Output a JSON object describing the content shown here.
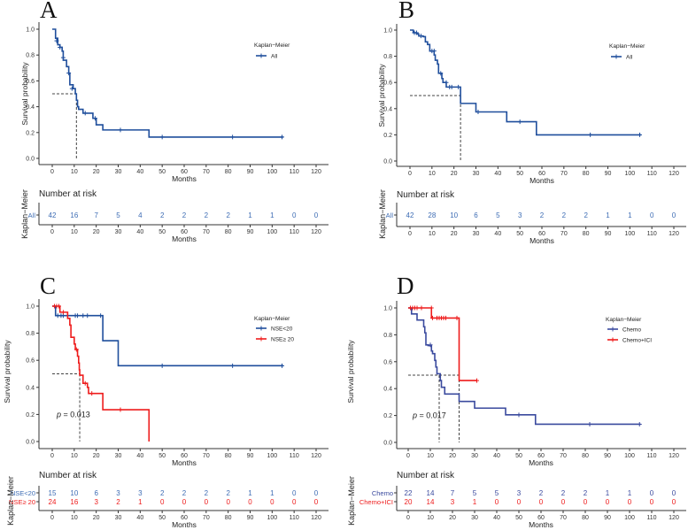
{
  "chart_data": [
    {
      "type": "line",
      "subtype": "kaplan-meier",
      "panel_label": "A",
      "xlabel": "Months",
      "ylabel": "Survival probability",
      "xlim": [
        0,
        120
      ],
      "ylim": [
        0,
        1
      ],
      "xticks": [
        "0",
        "10",
        "20",
        "30",
        "40",
        "50",
        "60",
        "70",
        "80",
        "90",
        "100",
        "110",
        "120"
      ],
      "yticks": [
        "0.0",
        "0.2",
        "0.4",
        "0.6",
        "0.8",
        "1.0"
      ],
      "legend_title": "Kaplan−Meier",
      "legend_position": "top-right",
      "medians": [
        11
      ],
      "p_value": null,
      "series": [
        {
          "name": "All",
          "color": "#1f4e9c",
          "times": [
            0,
            1.5,
            2.5,
            3.5,
            4.5,
            5,
            6.5,
            7.5,
            8,
            9.5,
            10.5,
            11,
            11.5,
            12,
            14,
            18.5,
            20,
            23,
            44,
            105
          ],
          "surv": [
            1,
            0.93,
            0.88,
            0.86,
            0.83,
            0.76,
            0.71,
            0.66,
            0.57,
            0.54,
            0.5,
            0.45,
            0.4,
            0.38,
            0.35,
            0.31,
            0.26,
            0.22,
            0.165,
            0.165
          ],
          "censored": [
            [
              2,
              0.91
            ],
            [
              3.5,
              0.86
            ],
            [
              5,
              0.78
            ],
            [
              7.5,
              0.66
            ],
            [
              9,
              0.54
            ],
            [
              15,
              0.35
            ],
            [
              19.5,
              0.31
            ],
            [
              31,
              0.22
            ],
            [
              50,
              0.165
            ],
            [
              82,
              0.165
            ],
            [
              104.5,
              0.165
            ]
          ]
        }
      ],
      "risk_table": {
        "title": "Number at risk",
        "side_label": "Kaplan−Meier",
        "times": [
          0,
          10,
          20,
          30,
          40,
          50,
          60,
          70,
          80,
          90,
          100,
          110,
          120
        ],
        "rows": [
          {
            "label": "All",
            "color": "#3d6cb4",
            "values": [
              "42",
              "16",
              "7",
              "5",
              "4",
              "2",
              "2",
              "2",
              "2",
              "1",
              "1",
              "0",
              "0"
            ]
          }
        ]
      }
    },
    {
      "type": "line",
      "subtype": "kaplan-meier",
      "panel_label": "B",
      "xlabel": "Months",
      "ylabel": "Survival probability",
      "xlim": [
        0,
        120
      ],
      "ylim": [
        0,
        1
      ],
      "xticks": [
        "0",
        "10",
        "20",
        "30",
        "40",
        "50",
        "60",
        "70",
        "80",
        "90",
        "100",
        "110",
        "120"
      ],
      "yticks": [
        "0.0",
        "0.2",
        "0.4",
        "0.6",
        "0.8",
        "1.0"
      ],
      "legend_title": "Kaplan−Meier",
      "legend_position": "top-right",
      "medians": [
        23
      ],
      "p_value": null,
      "series": [
        {
          "name": "All",
          "color": "#1f4e9c",
          "times": [
            0,
            1.5,
            3,
            4,
            6,
            7,
            8,
            9,
            11,
            11.5,
            12.5,
            13,
            14.5,
            15,
            16.5,
            23,
            30,
            44,
            57.5,
            105
          ],
          "surv": [
            1,
            0.98,
            0.97,
            0.955,
            0.95,
            0.91,
            0.89,
            0.84,
            0.81,
            0.77,
            0.74,
            0.67,
            0.63,
            0.6,
            0.565,
            0.44,
            0.375,
            0.3,
            0.2,
            0.2
          ],
          "censored": [
            [
              2,
              0.98
            ],
            [
              3,
              0.98
            ],
            [
              5,
              0.955
            ],
            [
              10,
              0.84
            ],
            [
              11,
              0.84
            ],
            [
              14,
              0.67
            ],
            [
              16.5,
              0.6
            ],
            [
              18,
              0.565
            ],
            [
              19,
              0.565
            ],
            [
              22,
              0.565
            ],
            [
              31,
              0.375
            ],
            [
              50,
              0.3
            ],
            [
              82,
              0.2
            ],
            [
              104.5,
              0.2
            ]
          ]
        }
      ],
      "risk_table": {
        "title": "Number at risk",
        "side_label": "Kaplan−Meier",
        "times": [
          0,
          10,
          20,
          30,
          40,
          50,
          60,
          70,
          80,
          90,
          100,
          110,
          120
        ],
        "rows": [
          {
            "label": "All",
            "color": "#3d6cb4",
            "values": [
              "42",
              "28",
              "10",
              "6",
              "5",
              "3",
              "2",
              "2",
              "2",
              "1",
              "1",
              "0",
              "0"
            ]
          }
        ]
      }
    },
    {
      "type": "line",
      "subtype": "kaplan-meier",
      "panel_label": "C",
      "xlabel": "Months",
      "ylabel": "Survival probability",
      "xlim": [
        0,
        120
      ],
      "ylim": [
        0,
        1
      ],
      "xticks": [
        "0",
        "10",
        "20",
        "30",
        "40",
        "50",
        "60",
        "70",
        "80",
        "90",
        "100",
        "110",
        "120"
      ],
      "yticks": [
        "0.0",
        "0.2",
        "0.4",
        "0.6",
        "0.8",
        "1.0"
      ],
      "legend_title": "Kaplan−Meier",
      "legend_position": "top-right",
      "medians": [
        12.5
      ],
      "p_value": {
        "label": "p",
        "text": " = 0.013"
      },
      "series": [
        {
          "name": "NSE<20",
          "color": "#1f4e9c",
          "times": [
            0,
            1.5,
            23,
            30,
            105
          ],
          "surv": [
            1,
            0.93,
            0.745,
            0.56,
            0.56
          ],
          "censored": [
            [
              2.5,
              0.93
            ],
            [
              4,
              0.93
            ],
            [
              5,
              0.93
            ],
            [
              10.5,
              0.93
            ],
            [
              11.5,
              0.93
            ],
            [
              14,
              0.93
            ],
            [
              16,
              0.93
            ],
            [
              22,
              0.93
            ],
            [
              50,
              0.56
            ],
            [
              82,
              0.56
            ],
            [
              104.5,
              0.56
            ]
          ]
        },
        {
          "name": "NSE≥ 20",
          "color": "#ee1c1c",
          "times": [
            0,
            3.5,
            7,
            8,
            8.5,
            10,
            10.5,
            11.5,
            12,
            12.3,
            12.5,
            14,
            16,
            16.5,
            23,
            44
          ],
          "surv": [
            1,
            0.955,
            0.91,
            0.86,
            0.77,
            0.72,
            0.68,
            0.63,
            0.58,
            0.53,
            0.49,
            0.43,
            0.4,
            0.355,
            0.235,
            0
          ],
          "censored": [
            [
              1,
              1
            ],
            [
              2,
              1
            ],
            [
              3,
              1
            ],
            [
              5,
              0.955
            ],
            [
              11,
              0.68
            ],
            [
              15,
              0.43
            ],
            [
              18,
              0.355
            ],
            [
              31,
              0.235
            ]
          ]
        }
      ],
      "risk_table": {
        "title": "Number at risk",
        "side_label": "Kaplan−Meier",
        "times": [
          0,
          10,
          20,
          30,
          40,
          50,
          60,
          70,
          80,
          90,
          100,
          110,
          120
        ],
        "rows": [
          {
            "label": "NSE<20",
            "color": "#3d6cb4",
            "values": [
              "15",
              "10",
              "6",
              "3",
              "3",
              "2",
              "2",
              "2",
              "2",
              "1",
              "1",
              "0",
              "0"
            ]
          },
          {
            "label": "NSE≥ 20",
            "color": "#ee1c1c",
            "values": [
              "24",
              "16",
              "3",
              "2",
              "1",
              "0",
              "0",
              "0",
              "0",
              "0",
              "0",
              "0",
              "0"
            ]
          }
        ]
      }
    },
    {
      "type": "line",
      "subtype": "kaplan-meier",
      "panel_label": "D",
      "xlabel": "Months",
      "ylabel": "Survival probability",
      "xlim": [
        0,
        120
      ],
      "ylim": [
        0,
        1
      ],
      "xticks": [
        "0",
        "10",
        "20",
        "30",
        "40",
        "50",
        "60",
        "70",
        "80",
        "90",
        "100",
        "110",
        "120"
      ],
      "yticks": [
        "0.0",
        "0.2",
        "0.4",
        "0.6",
        "0.8",
        "1.0"
      ],
      "legend_title": "Kaplan−Meier",
      "legend_position": "top-right",
      "medians": [
        14,
        23
      ],
      "p_value": {
        "label": "p",
        "text": " = 0.017"
      },
      "series": [
        {
          "name": "Chemo",
          "color": "#3a4a9e",
          "times": [
            0,
            1.5,
            4,
            7,
            7.5,
            8,
            9,
            10.5,
            11,
            12,
            12.5,
            13,
            14.5,
            15,
            16.5,
            23,
            30,
            44,
            57.5,
            105
          ],
          "surv": [
            1,
            0.955,
            0.91,
            0.86,
            0.815,
            0.725,
            0.72,
            0.68,
            0.66,
            0.61,
            0.56,
            0.51,
            0.46,
            0.41,
            0.36,
            0.305,
            0.255,
            0.205,
            0.135,
            0.135
          ],
          "censored": [
            [
              10,
              0.725
            ],
            [
              50,
              0.205
            ],
            [
              82,
              0.135
            ],
            [
              104.5,
              0.135
            ]
          ]
        },
        {
          "name": "Chemo+ICI",
          "color": "#ee1c1c",
          "times": [
            0,
            10.5,
            23,
            31
          ],
          "surv": [
            1,
            0.925,
            0.46,
            0.46
          ],
          "censored": [
            [
              1,
              1
            ],
            [
              2,
              1
            ],
            [
              3,
              1
            ],
            [
              4,
              1
            ],
            [
              6,
              1
            ],
            [
              10.5,
              1
            ],
            [
              11,
              0.925
            ],
            [
              13,
              0.925
            ],
            [
              14,
              0.925
            ],
            [
              15,
              0.925
            ],
            [
              16,
              0.925
            ],
            [
              17,
              0.925
            ],
            [
              22,
              0.925
            ],
            [
              31,
              0.46
            ]
          ]
        }
      ],
      "risk_table": {
        "title": "Number at risk",
        "side_label": "Kaplan−Meier",
        "times": [
          0,
          10,
          20,
          30,
          40,
          50,
          60,
          70,
          80,
          90,
          100,
          110,
          120
        ],
        "rows": [
          {
            "label": "Chemo",
            "color": "#3a4a9e",
            "values": [
              "22",
              "14",
              "7",
              "5",
              "5",
              "3",
              "2",
              "2",
              "2",
              "1",
              "1",
              "0",
              "0"
            ]
          },
          {
            "label": "Chemo+ICI",
            "color": "#ee1c1c",
            "values": [
              "20",
              "14",
              "3",
              "1",
              "0",
              "0",
              "0",
              "0",
              "0",
              "0",
              "0",
              "0",
              "0"
            ]
          }
        ]
      }
    }
  ]
}
